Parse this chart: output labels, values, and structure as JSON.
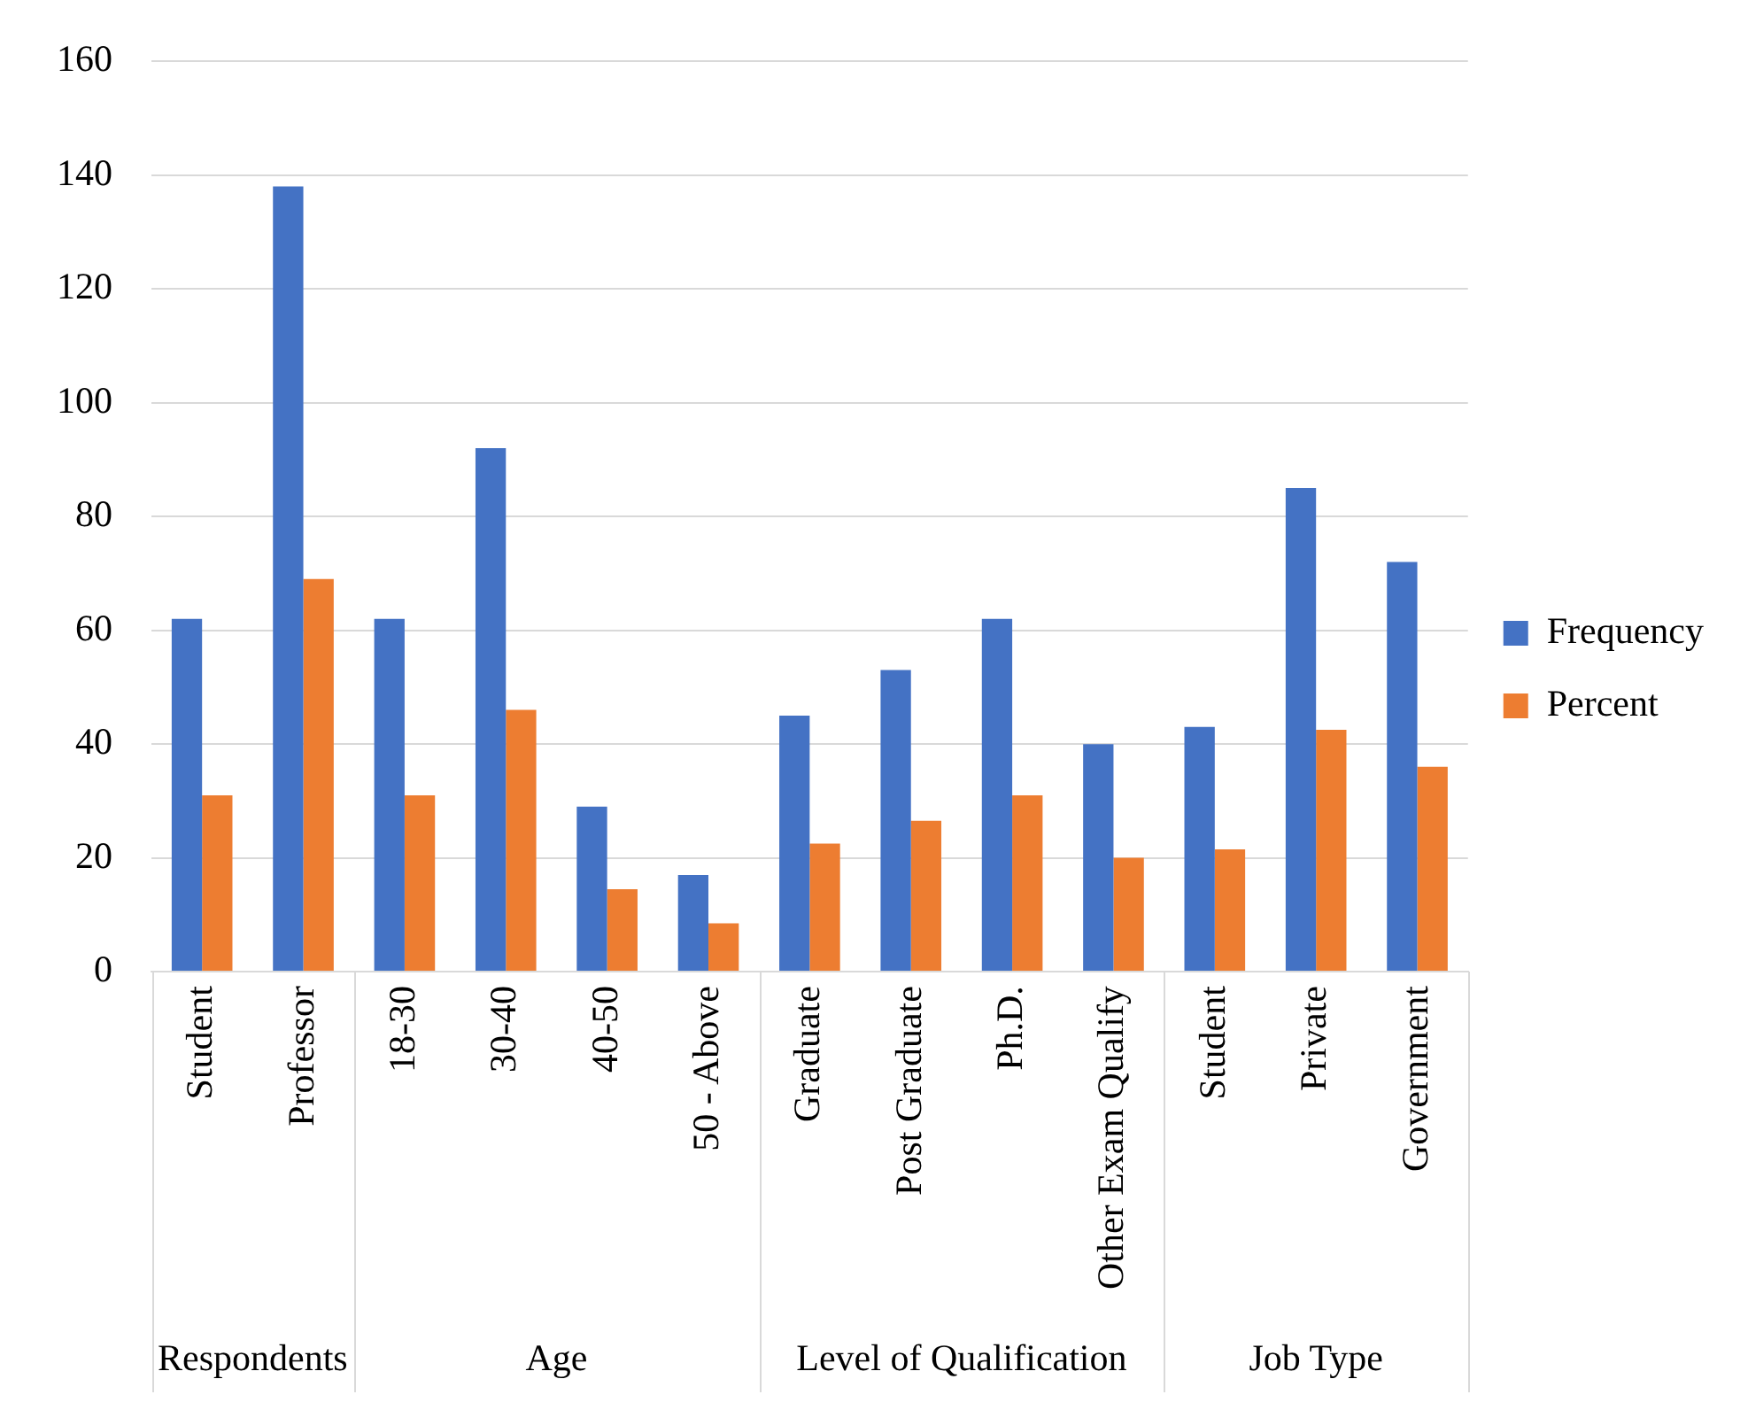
{
  "chart_data": {
    "type": "bar",
    "categories": [
      "Student",
      "Professor",
      "18-30",
      "30-40",
      "40-50",
      "50 - Above",
      "Graduate",
      "Post Graduate",
      "Ph.D.",
      "Other Exam Qualify",
      "Student",
      "Private",
      "Government"
    ],
    "series": [
      {
        "name": "Frequency",
        "color": "#4472c4",
        "values": [
          62,
          138,
          62,
          92,
          29,
          17,
          45,
          53,
          62,
          40,
          43,
          85,
          72
        ]
      },
      {
        "name": "Percent",
        "color": "#ed7d31",
        "values": [
          31,
          69,
          31,
          46,
          14.5,
          8.5,
          22.5,
          26.5,
          31,
          20,
          21.5,
          42.5,
          36
        ]
      }
    ],
    "ylim": [
      0,
      160
    ],
    "yticks": [
      0,
      20,
      40,
      60,
      80,
      100,
      120,
      140,
      160
    ],
    "grid": "y",
    "legend": "right",
    "annotations": [
      "Respondents",
      "Age",
      "Level of Qualification",
      "Job Type"
    ]
  }
}
